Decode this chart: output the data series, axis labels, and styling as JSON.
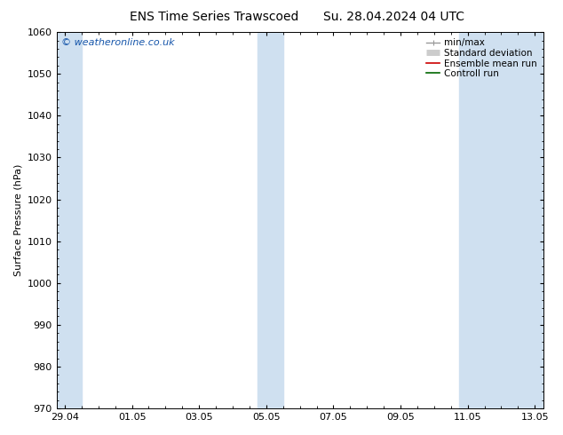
{
  "title_left": "ENS Time Series Trawscoed",
  "title_right": "Su. 28.04.2024 04 UTC",
  "ylabel": "Surface Pressure (hPa)",
  "ylim": [
    970,
    1060
  ],
  "yticks": [
    970,
    980,
    990,
    1000,
    1010,
    1020,
    1030,
    1040,
    1050,
    1060
  ],
  "xlabel_ticks": [
    "29.04",
    "01.05",
    "03.05",
    "05.05",
    "07.05",
    "09.05",
    "11.05",
    "13.05"
  ],
  "x_tick_positions": [
    0,
    2,
    4,
    6,
    8,
    10,
    12,
    14
  ],
  "x_total": 14,
  "x_minor_step": 0.5,
  "shaded_bands": [
    {
      "x_start": -0.25,
      "x_end": 0.5
    },
    {
      "x_start": 5.75,
      "x_end": 6.5
    },
    {
      "x_start": 11.75,
      "x_end": 14.25
    }
  ],
  "shaded_color": "#cfe0f0",
  "background_color": "#ffffff",
  "watermark_text": "© weatheronline.co.uk",
  "watermark_color": "#1555aa",
  "legend_entries": [
    {
      "label": "min/max",
      "color": "#999999",
      "lw": 1.0
    },
    {
      "label": "Standard deviation",
      "color": "#cccccc",
      "lw": 5
    },
    {
      "label": "Ensemble mean run",
      "color": "#cc0000",
      "lw": 1.2
    },
    {
      "label": "Controll run",
      "color": "#006600",
      "lw": 1.2
    }
  ],
  "title_fontsize": 10,
  "tick_fontsize": 8,
  "ylabel_fontsize": 8,
  "watermark_fontsize": 8,
  "legend_fontsize": 7.5
}
